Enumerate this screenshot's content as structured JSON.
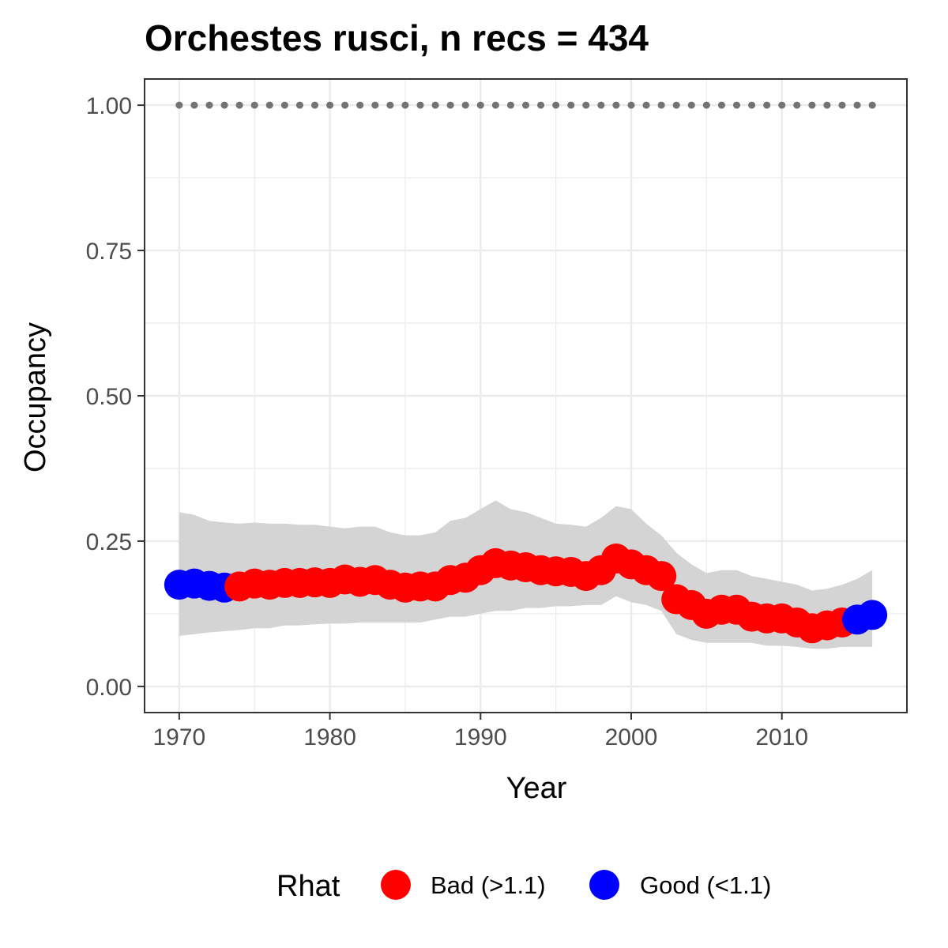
{
  "chart_data": {
    "type": "line",
    "title": "Orchestes rusci, n recs = 434",
    "xlabel": "Year",
    "ylabel": "Occupancy",
    "xlim": [
      1967.7,
      2018.3
    ],
    "ylim": [
      -0.045,
      1.045
    ],
    "x_ticks": [
      1970,
      1980,
      1990,
      2000,
      2010
    ],
    "x_tick_labels": [
      "1970",
      "1980",
      "1990",
      "2000",
      "2010"
    ],
    "y_ticks": [
      0,
      0.25,
      0.5,
      0.75,
      1.0
    ],
    "y_tick_labels": [
      "0.00",
      "0.25",
      "0.50",
      "0.75",
      "1.00"
    ],
    "grid": true,
    "legend": {
      "title": "Rhat",
      "position": "bottom",
      "entries": [
        {
          "label": "Bad (>1.1)",
          "color": "#ff0000"
        },
        {
          "label": "Good (<1.1)",
          "color": "#0000ff"
        }
      ]
    },
    "colors": {
      "bad": "#ff0000",
      "good": "#0000ff",
      "ribbon": "#d4d4d4",
      "dotted_line": "#737373"
    },
    "reference_line": {
      "y": 1.0,
      "x_range": [
        1970,
        2016
      ],
      "style": "dotted"
    },
    "series": [
      {
        "name": "Occupancy",
        "x": [
          1970,
          1971,
          1972,
          1973,
          1974,
          1975,
          1976,
          1977,
          1978,
          1979,
          1980,
          1981,
          1982,
          1983,
          1984,
          1985,
          1986,
          1987,
          1988,
          1989,
          1990,
          1991,
          1992,
          1993,
          1994,
          1995,
          1996,
          1997,
          1998,
          1999,
          2000,
          2001,
          2002,
          2003,
          2004,
          2005,
          2006,
          2007,
          2008,
          2009,
          2010,
          2011,
          2012,
          2013,
          2014,
          2015,
          2016
        ],
        "y": [
          0.175,
          0.177,
          0.173,
          0.17,
          0.172,
          0.177,
          0.175,
          0.178,
          0.178,
          0.179,
          0.178,
          0.184,
          0.18,
          0.183,
          0.175,
          0.17,
          0.172,
          0.172,
          0.183,
          0.187,
          0.2,
          0.212,
          0.208,
          0.205,
          0.2,
          0.198,
          0.197,
          0.19,
          0.2,
          0.22,
          0.21,
          0.2,
          0.19,
          0.15,
          0.14,
          0.125,
          0.132,
          0.132,
          0.12,
          0.117,
          0.117,
          0.11,
          0.1,
          0.105,
          0.11,
          0.115,
          0.123
        ],
        "lower": [
          0.087,
          0.09,
          0.093,
          0.095,
          0.097,
          0.1,
          0.1,
          0.105,
          0.105,
          0.107,
          0.108,
          0.108,
          0.11,
          0.11,
          0.11,
          0.11,
          0.11,
          0.115,
          0.12,
          0.12,
          0.125,
          0.13,
          0.13,
          0.135,
          0.135,
          0.138,
          0.138,
          0.14,
          0.14,
          0.155,
          0.145,
          0.14,
          0.13,
          0.09,
          0.08,
          0.075,
          0.075,
          0.075,
          0.075,
          0.07,
          0.07,
          0.068,
          0.065,
          0.065,
          0.068,
          0.068,
          0.068
        ],
        "upper": [
          0.3,
          0.295,
          0.285,
          0.282,
          0.28,
          0.282,
          0.28,
          0.28,
          0.278,
          0.278,
          0.275,
          0.272,
          0.275,
          0.275,
          0.265,
          0.26,
          0.26,
          0.265,
          0.285,
          0.29,
          0.305,
          0.32,
          0.305,
          0.3,
          0.29,
          0.28,
          0.278,
          0.275,
          0.29,
          0.31,
          0.305,
          0.28,
          0.26,
          0.23,
          0.21,
          0.195,
          0.2,
          0.2,
          0.19,
          0.185,
          0.18,
          0.175,
          0.165,
          0.168,
          0.175,
          0.185,
          0.2
        ],
        "rhat_status": [
          "Good",
          "Good",
          "Good",
          "Good",
          "Bad",
          "Bad",
          "Bad",
          "Bad",
          "Bad",
          "Bad",
          "Bad",
          "Bad",
          "Bad",
          "Bad",
          "Bad",
          "Bad",
          "Bad",
          "Bad",
          "Bad",
          "Bad",
          "Bad",
          "Bad",
          "Bad",
          "Bad",
          "Bad",
          "Bad",
          "Bad",
          "Bad",
          "Bad",
          "Bad",
          "Bad",
          "Bad",
          "Bad",
          "Bad",
          "Bad",
          "Bad",
          "Bad",
          "Bad",
          "Bad",
          "Bad",
          "Bad",
          "Bad",
          "Bad",
          "Bad",
          "Bad",
          "Good",
          "Good"
        ]
      }
    ]
  }
}
